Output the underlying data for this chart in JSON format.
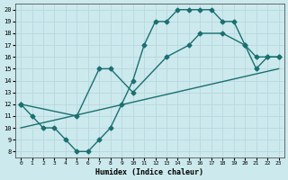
{
  "bg_color": "#cce9ed",
  "grid_color": "#b8d8de",
  "line_color": "#1a7070",
  "xlabel": "Humidex (Indice chaleur)",
  "xlim": [
    -0.5,
    23.5
  ],
  "ylim": [
    7.5,
    20.5
  ],
  "xticks": [
    0,
    1,
    2,
    3,
    4,
    5,
    6,
    7,
    8,
    9,
    10,
    11,
    12,
    13,
    14,
    15,
    16,
    17,
    18,
    19,
    20,
    21,
    22,
    23
  ],
  "yticks": [
    8,
    9,
    10,
    11,
    12,
    13,
    14,
    15,
    16,
    17,
    18,
    19,
    20
  ],
  "series1_x": [
    0,
    1,
    2,
    3,
    4,
    5,
    6,
    7,
    8,
    9,
    10,
    11,
    12,
    13,
    14,
    15,
    16,
    17,
    18,
    19,
    20,
    21,
    22,
    23
  ],
  "series1_y": [
    12,
    11,
    10,
    10,
    9,
    8,
    8,
    9,
    10,
    12,
    14,
    17,
    19,
    19,
    20,
    20,
    20,
    20,
    19,
    19,
    17,
    15,
    16,
    16
  ],
  "series2_x": [
    0,
    5,
    7,
    8,
    10,
    13,
    15,
    16,
    18,
    20,
    21,
    22,
    23
  ],
  "series2_y": [
    12,
    11,
    15,
    15,
    13,
    16,
    17,
    18,
    18,
    17,
    16,
    16,
    16
  ],
  "series3_x": [
    0,
    23
  ],
  "series3_y": [
    10,
    15
  ]
}
